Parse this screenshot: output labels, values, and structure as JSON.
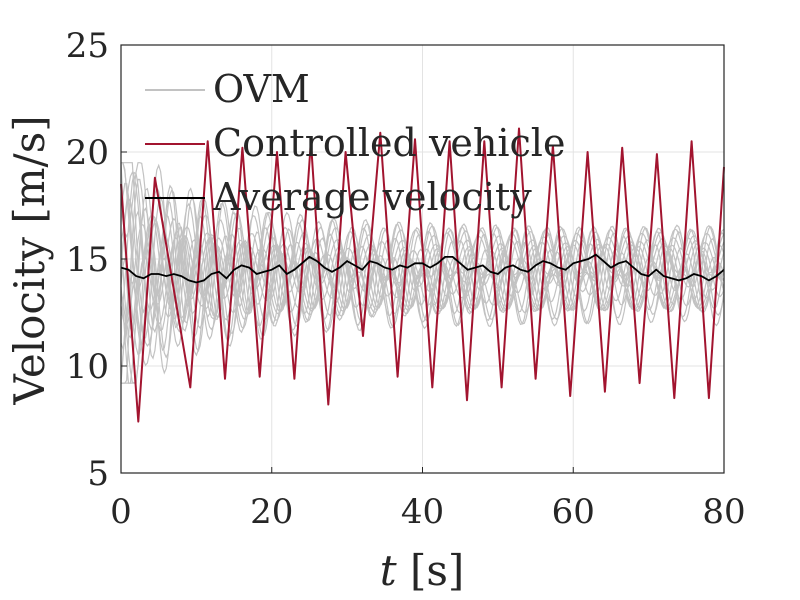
{
  "chart_data": {
    "type": "line",
    "xlabel": "t [s]",
    "ylabel": "Velocity [m/s]",
    "xlim": [
      0,
      80
    ],
    "ylim": [
      5,
      25
    ],
    "xticks": [
      0,
      20,
      40,
      60,
      80
    ],
    "yticks": [
      5,
      10,
      15,
      20,
      25
    ],
    "grid": true,
    "legend_position": "top-left",
    "legend": [
      "OVM",
      "Controlled vehicle",
      "Average velocity"
    ],
    "colors": {
      "ovm": "#c2c2c2",
      "controlled": "#a2142f",
      "average": "#000000",
      "grid": "#e3e3e3",
      "axes": "#262626"
    },
    "series": [
      {
        "name": "OVM",
        "description_count": 19,
        "x_range": [
          0,
          80
        ],
        "approx_band": [
          9.5,
          19.2
        ],
        "oscillation_period_s": 4.2
      },
      {
        "name": "Controlled vehicle",
        "x": [
          0,
          2.3,
          4.5,
          9.2,
          11.5,
          13.8,
          16.1,
          18.4,
          20.7,
          23.0,
          25.2,
          27.5,
          29.8,
          32.1,
          34.4,
          36.7,
          39.0,
          41.3,
          43.6,
          45.9,
          48.2,
          50.5,
          52.8,
          55.0,
          57.3,
          59.6,
          61.9,
          64.2,
          66.5,
          68.8,
          71.1,
          73.4,
          75.7,
          78.0,
          80.0
        ],
        "y": [
          18.5,
          7.4,
          18.8,
          9.0,
          20.5,
          9.4,
          20.2,
          9.5,
          20.0,
          9.4,
          20.5,
          8.2,
          20.0,
          11.4,
          20.9,
          9.5,
          20.6,
          9.0,
          20.5,
          8.4,
          20.5,
          9.0,
          21.1,
          9.4,
          20.3,
          8.6,
          20.0,
          8.8,
          20.2,
          9.2,
          19.9,
          8.5,
          20.5,
          8.5,
          19.3
        ]
      },
      {
        "name": "Average velocity",
        "x": [
          0,
          1,
          2,
          3,
          4,
          5,
          6,
          7,
          8,
          9,
          10,
          11,
          12,
          13,
          14,
          15,
          16,
          17,
          18,
          19,
          20,
          21,
          22,
          23,
          24,
          25,
          26,
          27,
          28,
          29,
          30,
          31,
          32,
          33,
          34,
          35,
          36,
          37,
          38,
          39,
          40,
          41,
          42,
          43,
          44,
          45,
          46,
          47,
          48,
          49,
          50,
          51,
          52,
          53,
          54,
          55,
          56,
          57,
          58,
          59,
          60,
          61,
          62,
          63,
          64,
          65,
          66,
          67,
          68,
          69,
          70,
          71,
          72,
          73,
          74,
          75,
          76,
          77,
          78,
          79,
          80
        ],
        "y": [
          14.6,
          14.5,
          14.2,
          14.1,
          14.3,
          14.3,
          14.2,
          14.3,
          14.2,
          14.0,
          13.9,
          14.0,
          14.3,
          14.4,
          14.1,
          14.5,
          14.7,
          14.6,
          14.3,
          14.4,
          14.5,
          14.7,
          14.3,
          14.5,
          14.8,
          15.1,
          14.9,
          14.6,
          14.4,
          14.6,
          14.9,
          14.7,
          14.5,
          14.9,
          14.8,
          14.6,
          14.5,
          14.7,
          14.6,
          14.8,
          14.8,
          14.6,
          14.8,
          15.1,
          15.1,
          14.8,
          14.5,
          14.6,
          14.7,
          14.4,
          14.3,
          14.6,
          14.7,
          14.5,
          14.4,
          14.7,
          14.9,
          14.8,
          14.6,
          14.5,
          14.8,
          14.9,
          15.0,
          15.2,
          14.9,
          14.6,
          14.8,
          14.9,
          14.6,
          14.3,
          14.2,
          14.5,
          14.2,
          14.1,
          14.0,
          14.1,
          14.3,
          14.2,
          14.0,
          14.2,
          14.5
        ]
      }
    ]
  }
}
